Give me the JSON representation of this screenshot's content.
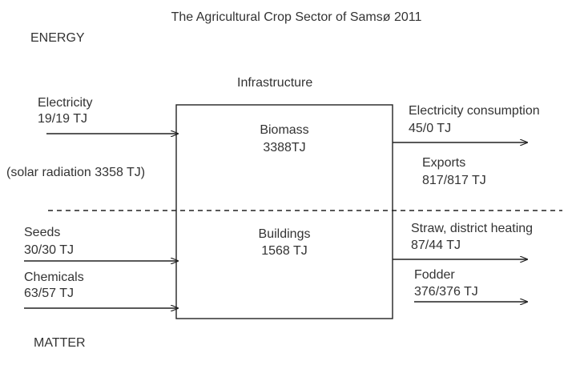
{
  "title": "The Agricultural Crop Sector of Samsø 2011",
  "labels": {
    "energy": "ENERGY",
    "matter": "MATTER",
    "infrastructure": "Infrastructure"
  },
  "box": {
    "top": {
      "name": "Biomass",
      "value": "3388TJ"
    },
    "bottom": {
      "name": "Buildings",
      "value": "1568 TJ"
    }
  },
  "inputs": [
    {
      "name": "Electricity",
      "value": "19/19 TJ"
    },
    {
      "name": "Seeds",
      "value": "30/30 TJ"
    },
    {
      "name": "Chemicals",
      "value": "63/57 TJ"
    }
  ],
  "note": "(solar radiation 3358 TJ)",
  "outputs": [
    {
      "name": "Electricity consumption",
      "value": "45/0 TJ"
    },
    {
      "name": "Exports",
      "value": "817/817 TJ"
    },
    {
      "name": "Straw, district heating",
      "value": "87/44 TJ"
    },
    {
      "name": "Fodder",
      "value": "376/376 TJ"
    }
  ]
}
